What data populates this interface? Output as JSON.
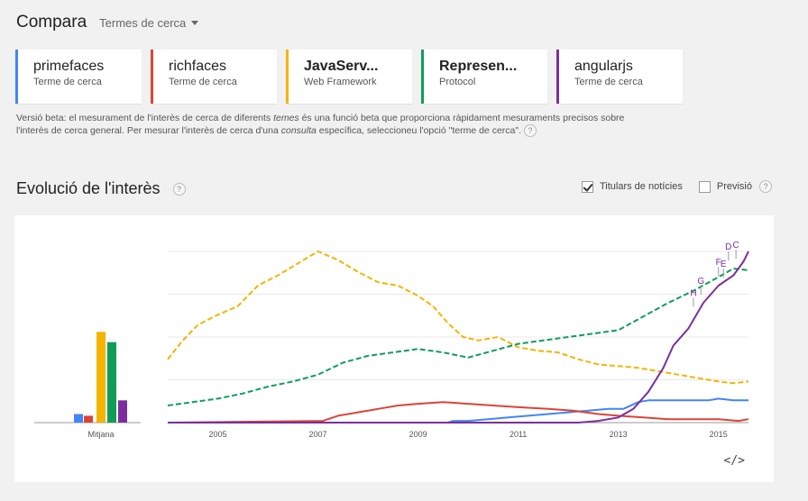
{
  "header": {
    "title": "Compara",
    "mode": "Termes de cerca"
  },
  "cards": [
    {
      "name": "primefaces",
      "type": "Terme de cerca",
      "color": "#4285f4",
      "bold": false
    },
    {
      "name": "richfaces",
      "type": "Terme de cerca",
      "color": "#db4437",
      "bold": false
    },
    {
      "name": "JavaServ...",
      "type": "Web Framework",
      "color": "#f4b400",
      "bold": true
    },
    {
      "name": "Represen...",
      "type": "Protocol",
      "color": "#0f9d58",
      "bold": true
    },
    {
      "name": "angularjs",
      "type": "Terme de cerca",
      "color": "#7b2f9e",
      "bold": false
    }
  ],
  "note": {
    "p1": "Versió beta: el mesurament de l'interès de cerca de diferents ",
    "em1": "temes",
    "p2": " és una funció beta que proporciona ràpidament mesuraments precisos sobre l'interès de cerca general. Per mesurar l'interès de cerca d'una ",
    "em2": "consulta",
    "p3": " específica, seleccioneu l'opció \"terme de cerca\"."
  },
  "section": {
    "title": "Evolució de l'interès"
  },
  "options": {
    "headlines": "Titulars de notícies",
    "headlines_checked": true,
    "forecast": "Previsió",
    "forecast_checked": false
  },
  "help_icon": "?",
  "embed_icon": "</>",
  "chart_data": {
    "type": "line",
    "x_tick_labels": [
      "2005",
      "2007",
      "2009",
      "2011",
      "2013",
      "2015"
    ],
    "ylim": [
      0,
      100
    ],
    "average": {
      "label": "Mitjana",
      "values": [
        5,
        4,
        53,
        47,
        13
      ]
    },
    "series": [
      {
        "color": "#4285f4",
        "dashed": false,
        "x": [
          2004,
          2009.6,
          2009.7,
          2010,
          2010.4,
          2010.8,
          2011.2,
          2011.6,
          2012,
          2012.4,
          2012.8,
          2013.1,
          2013.4,
          2013.6,
          2014,
          2014.4,
          2014.8,
          2015,
          2015.3,
          2015.6
        ],
        "y": [
          0,
          0,
          1,
          1,
          2,
          3,
          4,
          5,
          6,
          7,
          8,
          8,
          12,
          13,
          13,
          13,
          13,
          14,
          13,
          13
        ]
      },
      {
        "color": "#db4437",
        "dashed": false,
        "x": [
          2004,
          2007.1,
          2007.4,
          2007.8,
          2008.2,
          2008.6,
          2009,
          2009.5,
          2010,
          2010.5,
          2011,
          2011.6,
          2012.1,
          2012.6,
          2013,
          2013.5,
          2014,
          2014.5,
          2015,
          2015.4,
          2015.6
        ],
        "y": [
          0,
          1,
          4,
          6,
          8,
          10,
          11,
          12,
          11,
          10,
          9,
          8,
          7,
          5,
          4,
          3,
          2,
          2,
          2,
          1,
          2
        ]
      },
      {
        "color": "#f4b400",
        "dashed": true,
        "x": [
          2004,
          2004.3,
          2004.6,
          2005,
          2005.4,
          2005.8,
          2006.2,
          2006.6,
          2007,
          2007.4,
          2007.8,
          2008.2,
          2008.6,
          2009,
          2009.3,
          2009.6,
          2009.9,
          2010.2,
          2010.6,
          2011,
          2011.4,
          2011.8,
          2012.2,
          2012.6,
          2013,
          2013.4,
          2013.8,
          2014.2,
          2014.6,
          2015,
          2015.3,
          2015.6
        ],
        "y": [
          37,
          48,
          57,
          63,
          68,
          80,
          86,
          93,
          100,
          95,
          88,
          82,
          80,
          74,
          68,
          58,
          50,
          48,
          50,
          44,
          42,
          41,
          37,
          34,
          33,
          32,
          30,
          28,
          26,
          24,
          23,
          24
        ]
      },
      {
        "color": "#0f9d58",
        "dashed": true,
        "x": [
          2004,
          2004.5,
          2005,
          2005.5,
          2006,
          2006.5,
          2007,
          2007.5,
          2008,
          2008.5,
          2009,
          2009.5,
          2010,
          2010.5,
          2011,
          2011.5,
          2012,
          2012.5,
          2013,
          2013.5,
          2014,
          2014.5,
          2015,
          2015.3,
          2015.6
        ],
        "y": [
          10,
          12,
          14,
          17,
          21,
          24,
          28,
          35,
          39,
          41,
          43,
          41,
          38,
          42,
          46,
          48,
          50,
          52,
          54,
          62,
          70,
          77,
          85,
          90,
          89
        ]
      },
      {
        "color": "#7b2f9e",
        "dashed": false,
        "x": [
          2004,
          2012.2,
          2012.6,
          2013,
          2013.3,
          2013.6,
          2013.9,
          2014.1,
          2014.4,
          2014.7,
          2015,
          2015.3,
          2015.5,
          2015.6
        ],
        "y": [
          0,
          0,
          1,
          3,
          8,
          18,
          32,
          45,
          55,
          70,
          80,
          86,
          94,
          100
        ]
      }
    ],
    "annotations": [
      {
        "label": "H",
        "x": 2014.5,
        "y": 74
      },
      {
        "label": "G",
        "x": 2014.65,
        "y": 81
      },
      {
        "label": "F",
        "x": 2015.0,
        "y": 92
      },
      {
        "label": "E",
        "x": 2015.1,
        "y": 91
      },
      {
        "label": "D",
        "x": 2015.2,
        "y": 101
      },
      {
        "label": "C",
        "x": 2015.35,
        "y": 102
      }
    ]
  }
}
